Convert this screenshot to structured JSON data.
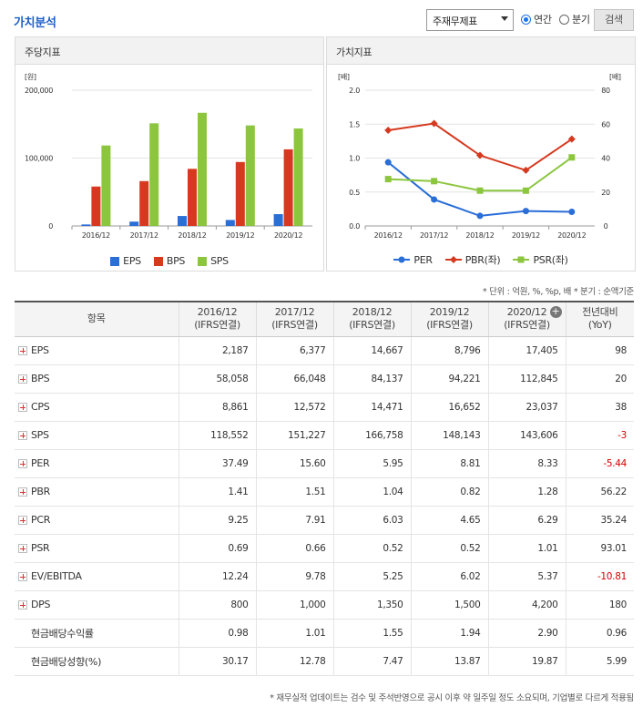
{
  "header": {
    "title": "가치분석",
    "select_value": "주재무제표",
    "radio_annual": "연간",
    "radio_quarter": "분기",
    "search_button": "검색"
  },
  "panel_left": {
    "title": "주당지표"
  },
  "panel_right": {
    "title": "가치지표"
  },
  "notes": {
    "units": "* 단위 : 억원, %, %p, 배    * 분기 : 순액기준"
  },
  "footnote": "* 재무실적 업데이트는 검수 및 주석반영으로 공시 이후 약 일주일 정도 소요되며, 기업별로 다르게 적용됨",
  "table": {
    "header_item": "항목",
    "columns": [
      {
        "year": "2016/12",
        "basis": "(IFRS연결)"
      },
      {
        "year": "2017/12",
        "basis": "(IFRS연결)"
      },
      {
        "year": "2018/12",
        "basis": "(IFRS연결)"
      },
      {
        "year": "2019/12",
        "basis": "(IFRS연결)"
      },
      {
        "year": "2020/12",
        "basis": "(IFRS연결)"
      }
    ],
    "yoy_title": "전년대비",
    "yoy_sub": "(YoY)",
    "rows": [
      {
        "label": "EPS",
        "expand": true,
        "values": [
          "2,187",
          "6,377",
          "14,667",
          "8,796",
          "17,405"
        ],
        "yoy": "98",
        "neg": false
      },
      {
        "label": "BPS",
        "expand": true,
        "values": [
          "58,058",
          "66,048",
          "84,137",
          "94,221",
          "112,845"
        ],
        "yoy": "20",
        "neg": false
      },
      {
        "label": "CPS",
        "expand": true,
        "values": [
          "8,861",
          "12,572",
          "14,471",
          "16,652",
          "23,037"
        ],
        "yoy": "38",
        "neg": false
      },
      {
        "label": "SPS",
        "expand": true,
        "values": [
          "118,552",
          "151,227",
          "166,758",
          "148,143",
          "143,606"
        ],
        "yoy": "-3",
        "neg": true
      },
      {
        "label": "PER",
        "expand": true,
        "values": [
          "37.49",
          "15.60",
          "5.95",
          "8.81",
          "8.33"
        ],
        "yoy": "-5.44",
        "neg": true
      },
      {
        "label": "PBR",
        "expand": true,
        "values": [
          "1.41",
          "1.51",
          "1.04",
          "0.82",
          "1.28"
        ],
        "yoy": "56.22",
        "neg": false
      },
      {
        "label": "PCR",
        "expand": true,
        "values": [
          "9.25",
          "7.91",
          "6.03",
          "4.65",
          "6.29"
        ],
        "yoy": "35.24",
        "neg": false
      },
      {
        "label": "PSR",
        "expand": true,
        "values": [
          "0.69",
          "0.66",
          "0.52",
          "0.52",
          "1.01"
        ],
        "yoy": "93.01",
        "neg": false
      },
      {
        "label": "EV/EBITDA",
        "expand": true,
        "values": [
          "12.24",
          "9.78",
          "5.25",
          "6.02",
          "5.37"
        ],
        "yoy": "-10.81",
        "neg": true
      },
      {
        "label": "DPS",
        "expand": true,
        "values": [
          "800",
          "1,000",
          "1,350",
          "1,500",
          "4,200"
        ],
        "yoy": "180",
        "neg": false
      },
      {
        "label": "현금배당수익률",
        "expand": false,
        "values": [
          "0.98",
          "1.01",
          "1.55",
          "1.94",
          "2.90"
        ],
        "yoy": "0.96",
        "neg": false
      },
      {
        "label": "현금배당성향(%)",
        "expand": false,
        "values": [
          "30.17",
          "12.78",
          "7.47",
          "13.87",
          "19.87"
        ],
        "yoy": "5.99",
        "neg": false
      }
    ]
  },
  "chart_data": [
    {
      "type": "bar",
      "title": "주당지표",
      "ylabel": "[원]",
      "ylim": [
        0,
        200000
      ],
      "yticks": [
        "0",
        "100,000",
        "200,000"
      ],
      "categories": [
        "2016/12",
        "2017/12",
        "2018/12",
        "2019/12",
        "2020/12"
      ],
      "series": [
        {
          "name": "EPS",
          "color": "#2a6ed8",
          "values": [
            2187,
            6377,
            14667,
            8796,
            17405
          ]
        },
        {
          "name": "BPS",
          "color": "#d6391f",
          "values": [
            58058,
            66048,
            84137,
            94221,
            112845
          ]
        },
        {
          "name": "SPS",
          "color": "#8cc63e",
          "values": [
            118552,
            151227,
            166758,
            148143,
            143606
          ]
        }
      ]
    },
    {
      "type": "line",
      "title": "가치지표",
      "ylabel_left": "[배]",
      "ylabel_right": "[배]",
      "ylim_left": [
        0,
        2.0
      ],
      "ylim_right": [
        0,
        80
      ],
      "yticks_left": [
        "0.0",
        "0.5",
        "1.0",
        "1.5",
        "2.0"
      ],
      "yticks_right": [
        "0",
        "20",
        "40",
        "60",
        "80"
      ],
      "categories": [
        "2016/12",
        "2017/12",
        "2018/12",
        "2019/12",
        "2020/12"
      ],
      "series": [
        {
          "name": "PER",
          "axis": "right",
          "color": "#2a6ed8",
          "marker": "circle",
          "values": [
            37.49,
            15.6,
            5.95,
            8.81,
            8.33
          ]
        },
        {
          "name": "PBR(좌)",
          "axis": "left",
          "color": "#d6391f",
          "marker": "diamond",
          "values": [
            1.41,
            1.51,
            1.04,
            0.82,
            1.28
          ]
        },
        {
          "name": "PSR(좌)",
          "axis": "left",
          "color": "#8cc63e",
          "marker": "square",
          "values": [
            0.69,
            0.66,
            0.52,
            0.52,
            1.01
          ]
        }
      ]
    }
  ]
}
